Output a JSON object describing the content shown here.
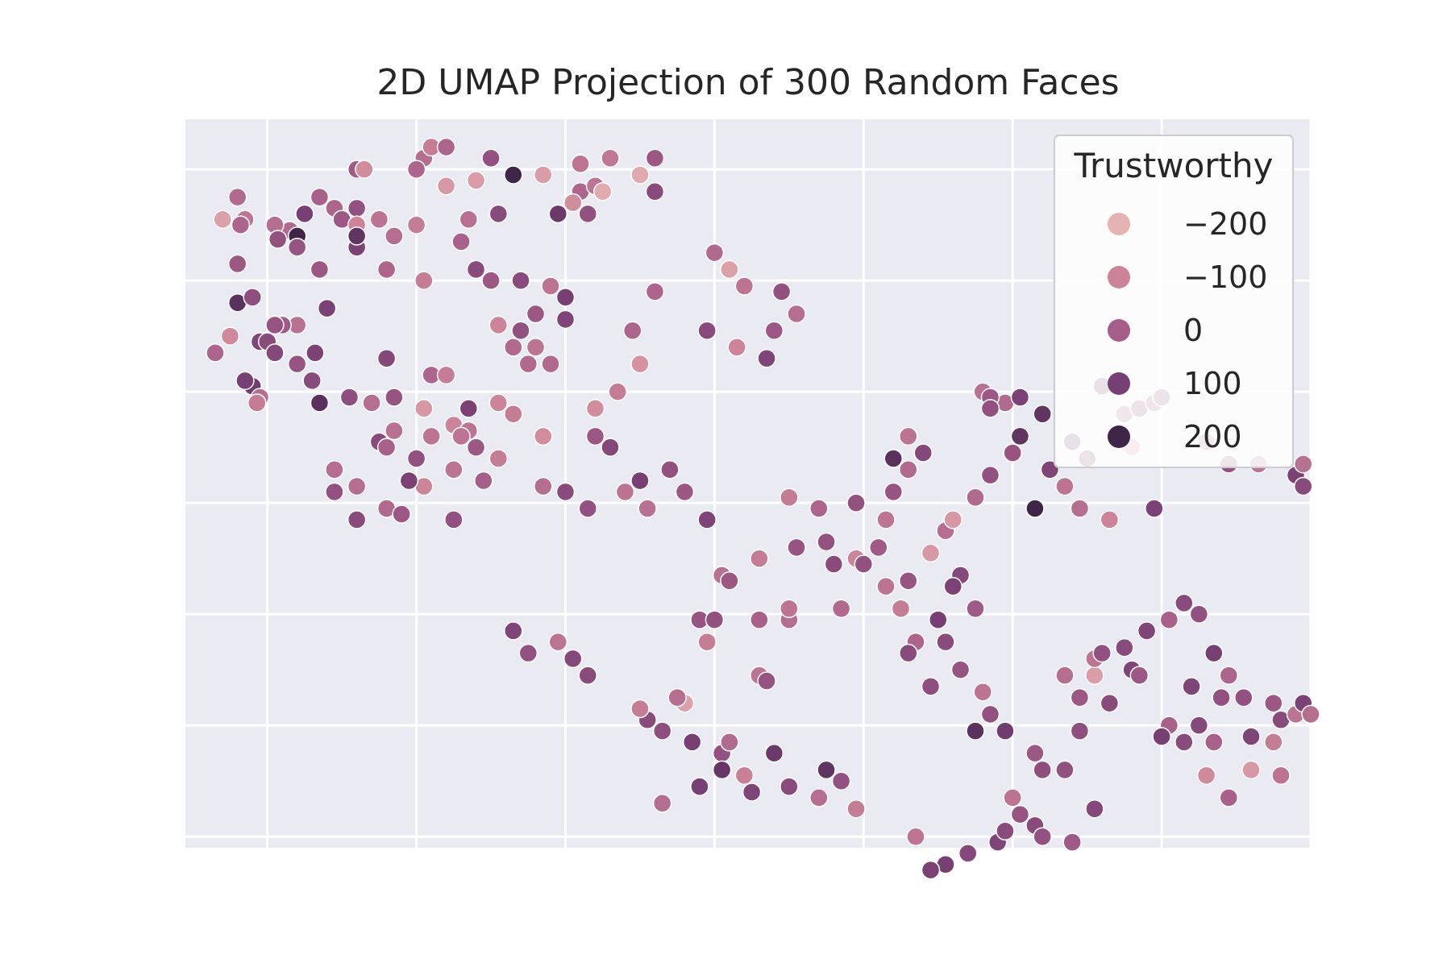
{
  "chart_data": {
    "type": "scatter",
    "title": "2D UMAP Projection of 300 Random Faces",
    "xlabel": "",
    "ylabel": "",
    "xlim": [
      -0.55,
      7.0
    ],
    "ylim": [
      -0.1,
      6.45
    ],
    "grid": true,
    "tick_labels_visible": false,
    "hue": {
      "name": "Trustworthy",
      "legend_values": [
        -200,
        -100,
        0,
        100,
        200
      ],
      "palette": {
        "-200": "#e6b3b3",
        "-100": "#cd8498",
        "0": "#a55d8a",
        "100": "#773f73",
        "200": "#3f2547"
      },
      "legend_position": "upper-right"
    },
    "points": [
      [
        1.05,
        6.1,
        -40
      ],
      [
        1.1,
        6.2,
        -80
      ],
      [
        1.2,
        6.2,
        -20
      ],
      [
        1.0,
        6.0,
        -20
      ],
      [
        0.6,
        6.0,
        10
      ],
      [
        0.65,
        6.0,
        -120
      ],
      [
        1.2,
        5.85,
        -140
      ],
      [
        1.5,
        6.1,
        40
      ],
      [
        1.4,
        5.9,
        -150
      ],
      [
        1.65,
        5.95,
        250
      ],
      [
        2.1,
        5.8,
        -20
      ],
      [
        2.2,
        5.85,
        -60
      ],
      [
        2.25,
        5.8,
        -180
      ],
      [
        2.05,
        5.7,
        -120
      ],
      [
        2.15,
        5.6,
        40
      ],
      [
        1.95,
        5.6,
        120
      ],
      [
        1.35,
        5.55,
        -50
      ],
      [
        1.55,
        5.6,
        60
      ],
      [
        0.6,
        5.65,
        40
      ],
      [
        0.35,
        5.75,
        -10
      ],
      [
        0.45,
        5.65,
        -20
      ],
      [
        0.25,
        5.6,
        100
      ],
      [
        0.5,
        5.55,
        20
      ],
      [
        0.15,
        5.45,
        -30
      ],
      [
        -0.2,
        5.75,
        -30
      ],
      [
        -0.15,
        5.55,
        -60
      ],
      [
        -0.18,
        5.5,
        -20
      ],
      [
        0.05,
        5.5,
        -40
      ],
      [
        0.07,
        5.37,
        40
      ],
      [
        0.2,
        5.4,
        220
      ],
      [
        0.2,
        5.3,
        30
      ],
      [
        0.35,
        5.1,
        20
      ],
      [
        -0.2,
        5.15,
        20
      ],
      [
        -0.3,
        5.55,
        -160
      ],
      [
        0.6,
        5.5,
        -100
      ],
      [
        0.75,
        5.55,
        -60
      ],
      [
        0.85,
        5.4,
        -40
      ],
      [
        0.6,
        5.3,
        90
      ],
      [
        0.6,
        5.4,
        140
      ],
      [
        0.8,
        5.1,
        -20
      ],
      [
        1.05,
        5.0,
        -80
      ],
      [
        1.0,
        5.5,
        -80
      ],
      [
        1.3,
        5.35,
        -10
      ],
      [
        1.4,
        5.1,
        60
      ],
      [
        1.5,
        5.0,
        20
      ],
      [
        1.7,
        5.0,
        60
      ],
      [
        1.9,
        4.95,
        -60
      ],
      [
        2.0,
        4.85,
        100
      ],
      [
        0.4,
        4.75,
        90
      ],
      [
        0.2,
        4.6,
        -50
      ],
      [
        -0.05,
        4.45,
        80
      ],
      [
        0.1,
        4.6,
        10
      ],
      [
        -0.2,
        4.8,
        150
      ],
      [
        -0.1,
        4.85,
        50
      ],
      [
        0.05,
        4.6,
        30
      ],
      [
        0.0,
        4.45,
        60
      ],
      [
        0.05,
        4.35,
        70
      ],
      [
        0.32,
        4.35,
        90
      ],
      [
        -0.35,
        4.35,
        -20
      ],
      [
        -0.25,
        4.5,
        -110
      ],
      [
        0.2,
        4.25,
        30
      ],
      [
        -0.1,
        4.05,
        110
      ],
      [
        -0.05,
        3.95,
        -40
      ],
      [
        -0.07,
        3.9,
        -80
      ],
      [
        -0.15,
        4.1,
        100
      ],
      [
        0.3,
        4.1,
        60
      ],
      [
        0.35,
        3.9,
        150
      ],
      [
        0.55,
        3.95,
        50
      ],
      [
        0.7,
        3.9,
        -40
      ],
      [
        0.8,
        4.3,
        70
      ],
      [
        0.85,
        3.95,
        30
      ],
      [
        1.05,
        3.85,
        -140
      ],
      [
        0.85,
        3.65,
        -50
      ],
      [
        1.1,
        3.6,
        -60
      ],
      [
        1.25,
        3.7,
        -100
      ],
      [
        1.35,
        3.65,
        -60
      ],
      [
        1.65,
        4.4,
        -30
      ],
      [
        1.8,
        4.4,
        -60
      ],
      [
        1.55,
        4.6,
        -100
      ],
      [
        1.7,
        4.55,
        40
      ],
      [
        1.8,
        4.7,
        20
      ],
      [
        2.0,
        4.65,
        80
      ],
      [
        1.75,
        4.25,
        -30
      ],
      [
        1.9,
        4.25,
        -30
      ],
      [
        1.1,
        4.15,
        -20
      ],
      [
        1.2,
        4.15,
        -80
      ],
      [
        1.35,
        3.85,
        90
      ],
      [
        1.55,
        3.9,
        -100
      ],
      [
        1.65,
        3.8,
        -80
      ],
      [
        1.3,
        3.6,
        -60
      ],
      [
        1.4,
        3.5,
        20
      ],
      [
        1.25,
        3.3,
        -60
      ],
      [
        1.45,
        3.2,
        0
      ],
      [
        1.05,
        3.15,
        -100
      ],
      [
        1.25,
        2.85,
        40
      ],
      [
        0.45,
        3.3,
        -40
      ],
      [
        0.6,
        3.15,
        -40
      ],
      [
        0.45,
        3.1,
        40
      ],
      [
        0.8,
        2.95,
        -30
      ],
      [
        0.9,
        2.9,
        20
      ],
      [
        0.6,
        2.85,
        60
      ],
      [
        0.75,
        3.55,
        60
      ],
      [
        0.8,
        3.5,
        -10
      ],
      [
        1.0,
        3.4,
        40
      ],
      [
        0.95,
        3.2,
        90
      ],
      [
        1.85,
        5.95,
        -150
      ],
      [
        2.1,
        6.05,
        -60
      ],
      [
        2.6,
        6.1,
        20
      ],
      [
        2.5,
        5.95,
        -180
      ],
      [
        2.3,
        6.1,
        -70
      ],
      [
        2.6,
        5.8,
        60
      ],
      [
        3.0,
        5.25,
        -30
      ],
      [
        3.1,
        5.1,
        -160
      ],
      [
        3.2,
        4.95,
        -60
      ],
      [
        3.45,
        4.9,
        40
      ],
      [
        3.55,
        4.7,
        -40
      ],
      [
        3.4,
        4.55,
        20
      ],
      [
        3.15,
        4.4,
        -100
      ],
      [
        3.35,
        4.3,
        80
      ],
      [
        2.95,
        4.55,
        60
      ],
      [
        2.6,
        4.9,
        -20
      ],
      [
        2.45,
        4.55,
        -20
      ],
      [
        2.5,
        4.25,
        -130
      ],
      [
        2.35,
        4.0,
        -80
      ],
      [
        2.2,
        3.85,
        -120
      ],
      [
        2.2,
        3.6,
        20
      ],
      [
        1.85,
        3.6,
        -120
      ],
      [
        1.55,
        3.4,
        -80
      ],
      [
        1.85,
        3.15,
        -40
      ],
      [
        2.0,
        3.1,
        60
      ],
      [
        2.15,
        2.95,
        40
      ],
      [
        2.3,
        3.5,
        70
      ],
      [
        2.5,
        3.2,
        100
      ],
      [
        2.4,
        3.1,
        -60
      ],
      [
        2.55,
        2.95,
        -50
      ],
      [
        2.7,
        3.3,
        40
      ],
      [
        2.8,
        3.1,
        20
      ],
      [
        2.95,
        2.85,
        80
      ],
      [
        3.05,
        2.35,
        -50
      ],
      [
        3.1,
        2.3,
        20
      ],
      [
        3.3,
        2.5,
        -80
      ],
      [
        2.9,
        1.95,
        30
      ],
      [
        3.0,
        1.95,
        40
      ],
      [
        2.95,
        1.75,
        -80
      ],
      [
        3.3,
        1.45,
        -60
      ],
      [
        3.35,
        1.4,
        30
      ],
      [
        3.3,
        1.95,
        -10
      ],
      [
        3.5,
        1.95,
        -40
      ],
      [
        3.5,
        2.05,
        -60
      ],
      [
        3.5,
        3.05,
        -80
      ],
      [
        3.55,
        2.6,
        30
      ],
      [
        3.7,
        2.95,
        -20
      ],
      [
        3.75,
        2.65,
        40
      ],
      [
        3.8,
        2.45,
        60
      ],
      [
        3.85,
        2.05,
        -30
      ],
      [
        3.95,
        3.0,
        40
      ],
      [
        3.95,
        2.5,
        -100
      ],
      [
        4.0,
        2.45,
        40
      ],
      [
        4.1,
        2.6,
        10
      ],
      [
        4.15,
        2.85,
        -60
      ],
      [
        4.2,
        3.1,
        30
      ],
      [
        4.3,
        3.6,
        -60
      ],
      [
        4.4,
        3.45,
        70
      ],
      [
        4.2,
        3.4,
        150
      ],
      [
        4.3,
        3.3,
        -30
      ],
      [
        4.55,
        2.75,
        -40
      ],
      [
        4.45,
        2.55,
        -140
      ],
      [
        4.6,
        2.85,
        -140
      ],
      [
        4.75,
        3.05,
        -30
      ],
      [
        4.85,
        3.25,
        40
      ],
      [
        5.0,
        3.45,
        30
      ],
      [
        5.05,
        3.6,
        140
      ],
      [
        4.8,
        4.0,
        -50
      ],
      [
        4.95,
        3.9,
        -30
      ],
      [
        5.05,
        3.95,
        90
      ],
      [
        5.2,
        3.8,
        140
      ],
      [
        5.4,
        3.55,
        120
      ],
      [
        5.5,
        3.4,
        90
      ],
      [
        5.8,
        3.5,
        -100
      ],
      [
        5.75,
        3.8,
        10
      ],
      [
        5.85,
        3.85,
        80
      ],
      [
        5.95,
        3.9,
        40
      ],
      [
        6.0,
        3.95,
        60
      ],
      [
        6.3,
        3.55,
        -30
      ],
      [
        6.45,
        3.35,
        40
      ],
      [
        6.65,
        3.35,
        -60
      ],
      [
        6.9,
        3.25,
        90
      ],
      [
        6.95,
        3.35,
        -50
      ],
      [
        6.95,
        3.15,
        60
      ],
      [
        4.85,
        3.95,
        20
      ],
      [
        4.85,
        3.85,
        40
      ],
      [
        5.6,
        4.05,
        130
      ],
      [
        5.25,
        3.3,
        80
      ],
      [
        5.35,
        3.15,
        -60
      ],
      [
        5.15,
        2.95,
        200
      ],
      [
        5.45,
        2.95,
        -40
      ],
      [
        5.65,
        2.85,
        -100
      ],
      [
        5.95,
        2.95,
        90
      ],
      [
        4.15,
        2.25,
        -60
      ],
      [
        4.3,
        2.3,
        30
      ],
      [
        4.25,
        2.05,
        -80
      ],
      [
        4.65,
        2.35,
        70
      ],
      [
        4.6,
        2.25,
        90
      ],
      [
        4.75,
        2.05,
        10
      ],
      [
        4.5,
        1.95,
        100
      ],
      [
        4.35,
        1.75,
        -20
      ],
      [
        4.3,
        1.65,
        60
      ],
      [
        4.45,
        1.35,
        50
      ],
      [
        4.55,
        1.75,
        60
      ],
      [
        4.65,
        1.5,
        30
      ],
      [
        4.8,
        1.3,
        -60
      ],
      [
        4.85,
        1.1,
        40
      ],
      [
        4.75,
        0.95,
        150
      ],
      [
        4.95,
        0.95,
        110
      ],
      [
        5.15,
        0.75,
        20
      ],
      [
        5.2,
        0.6,
        50
      ],
      [
        5.35,
        0.6,
        40
      ],
      [
        5.45,
        0.95,
        50
      ],
      [
        5.55,
        1.45,
        -150
      ],
      [
        5.55,
        1.6,
        -60
      ],
      [
        5.6,
        1.65,
        40
      ],
      [
        5.8,
        1.5,
        80
      ],
      [
        5.85,
        1.45,
        20
      ],
      [
        5.75,
        1.7,
        60
      ],
      [
        5.9,
        1.85,
        80
      ],
      [
        6.05,
        1.95,
        -10
      ],
      [
        6.15,
        2.1,
        60
      ],
      [
        6.25,
        2.0,
        40
      ],
      [
        6.35,
        1.65,
        100
      ],
      [
        6.45,
        1.45,
        -20
      ],
      [
        6.2,
        1.35,
        80
      ],
      [
        6.4,
        1.25,
        40
      ],
      [
        6.25,
        1.0,
        70
      ],
      [
        6.15,
        0.85,
        60
      ],
      [
        6.05,
        1.0,
        -10
      ],
      [
        6.0,
        0.9,
        100
      ],
      [
        5.65,
        1.2,
        60
      ],
      [
        5.45,
        1.25,
        20
      ],
      [
        5.35,
        1.45,
        -40
      ],
      [
        6.55,
        1.25,
        40
      ],
      [
        6.75,
        1.2,
        20
      ],
      [
        6.8,
        1.05,
        60
      ],
      [
        6.9,
        1.1,
        -60
      ],
      [
        6.95,
        1.2,
        90
      ],
      [
        7.0,
        1.1,
        -40
      ],
      [
        6.6,
        0.9,
        80
      ],
      [
        6.35,
        0.85,
        -10
      ],
      [
        6.75,
        0.85,
        -80
      ],
      [
        6.6,
        0.6,
        -140
      ],
      [
        6.3,
        0.55,
        -110
      ],
      [
        6.45,
        0.35,
        -10
      ],
      [
        6.8,
        0.55,
        -60
      ],
      [
        5.0,
        0.35,
        -60
      ],
      [
        5.05,
        0.2,
        30
      ],
      [
        5.15,
        0.1,
        60
      ],
      [
        5.2,
        0.0,
        40
      ],
      [
        5.4,
        -0.05,
        10
      ],
      [
        5.55,
        0.25,
        70
      ],
      [
        4.9,
        -0.05,
        80
      ],
      [
        4.95,
        0.05,
        60
      ],
      [
        4.7,
        -0.15,
        70
      ],
      [
        4.55,
        -0.25,
        100
      ],
      [
        4.45,
        -0.3,
        90
      ],
      [
        4.35,
        0.0,
        -60
      ],
      [
        3.95,
        0.25,
        -80
      ],
      [
        3.85,
        0.5,
        40
      ],
      [
        3.7,
        0.35,
        -40
      ],
      [
        3.5,
        0.45,
        60
      ],
      [
        3.25,
        0.4,
        80
      ],
      [
        3.2,
        0.55,
        -90
      ],
      [
        3.05,
        0.75,
        40
      ],
      [
        2.85,
        0.85,
        100
      ],
      [
        2.65,
        0.95,
        50
      ],
      [
        2.55,
        1.05,
        60
      ],
      [
        2.8,
        1.2,
        -160
      ],
      [
        2.75,
        1.25,
        -40
      ],
      [
        2.5,
        1.15,
        -80
      ],
      [
        2.15,
        1.45,
        60
      ],
      [
        2.05,
        1.6,
        70
      ],
      [
        1.75,
        1.65,
        40
      ],
      [
        1.95,
        1.75,
        -60
      ],
      [
        1.65,
        1.85,
        80
      ],
      [
        3.75,
        0.6,
        140
      ],
      [
        3.4,
        0.75,
        120
      ],
      [
        3.1,
        0.85,
        -30
      ],
      [
        3.05,
        0.6,
        130
      ],
      [
        2.9,
        0.45,
        100
      ],
      [
        2.65,
        0.3,
        -40
      ]
    ]
  }
}
